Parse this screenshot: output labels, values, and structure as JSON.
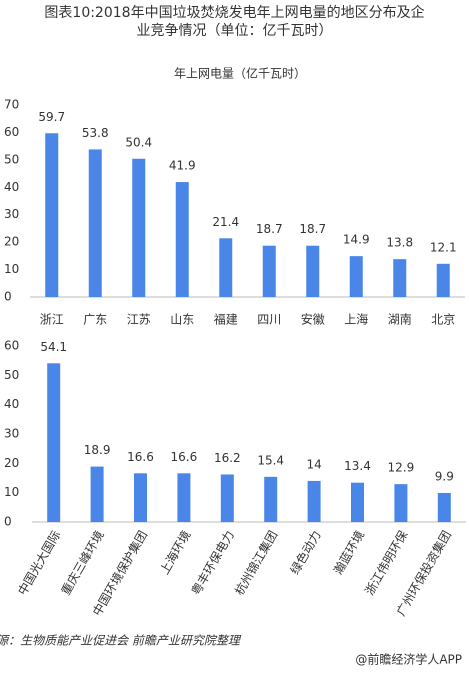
{
  "title": "图表10:2018年中国垃圾焚烧发电年上网电量的地区分布及企业竞争情况（单位：亿千瓦时）",
  "chart_data": [
    {
      "type": "bar",
      "title": "年上网电量（亿千瓦时）",
      "categories": [
        "浙江",
        "广东",
        "江苏",
        "山东",
        "福建",
        "四川",
        "安徽",
        "上海",
        "湖南",
        "北京"
      ],
      "values": [
        59.7,
        53.8,
        50.4,
        41.9,
        21.4,
        18.7,
        18.7,
        14.9,
        13.8,
        12.1
      ],
      "color": "#4a86e8",
      "ylim": [
        0,
        70
      ],
      "yticks": [
        0,
        10,
        20,
        30,
        40,
        50,
        60,
        70
      ]
    },
    {
      "type": "bar",
      "categories": [
        "中国光大国际",
        "重庆三峰环境",
        "中国环境保护集团",
        "上海环境",
        "粤丰环保电力",
        "杭州锦江集团",
        "绿色动力",
        "瀚蓝环境",
        "浙江伟明环保",
        "广州环保投资集团"
      ],
      "values": [
        54.1,
        18.9,
        16.6,
        16.6,
        16.2,
        15.4,
        14,
        13.4,
        12.9,
        9.9
      ],
      "color": "#4a86e8",
      "ylim": [
        0,
        60
      ],
      "yticks": [
        0,
        10,
        20,
        30,
        40,
        50,
        60
      ]
    }
  ],
  "source": "资料来源：生物质能产业促进会 前瞻产业研究院整理",
  "footer": "@前瞻经济学人APP"
}
